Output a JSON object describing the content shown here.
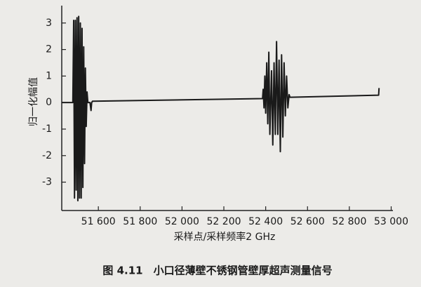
{
  "chart_data": {
    "type": "line",
    "caption": "图 4.11　小口径薄壁不锈钢管壁厚超声测量信号",
    "x_label": "采样点/采样频率2 GHz",
    "y_label": "归一化幅值",
    "color": "#1a1a1a",
    "x": [
      51425,
      51478,
      51482,
      51486,
      51490,
      51494,
      51498,
      51502,
      51506,
      51510,
      51514,
      51518,
      51522,
      51526,
      51530,
      51534,
      51538,
      51542,
      51546,
      51550,
      51560,
      51565,
      51568,
      51572,
      52385,
      52388,
      52392,
      52396,
      52400,
      52405,
      52410,
      52415,
      52420,
      52428,
      52434,
      52440,
      52446,
      52452,
      52458,
      52464,
      52470,
      52476,
      52482,
      52488,
      52494,
      52500,
      52506,
      52512,
      52516,
      52940,
      52942
    ],
    "values": [
      0,
      0,
      3.1,
      -3.6,
      3.1,
      -3.3,
      3.2,
      -3.7,
      3.25,
      -3.6,
      3.0,
      -3.6,
      2.8,
      -3.2,
      2.1,
      -2.3,
      1.3,
      -0.9,
      0.4,
      0,
      0,
      -0.3,
      0,
      0.05,
      0.15,
      0.5,
      -0.2,
      1.0,
      -0.4,
      1.5,
      -0.8,
      1.9,
      -1.2,
      1.2,
      -1.6,
      1.5,
      -1.2,
      2.3,
      -1.2,
      1.6,
      -1.85,
      1.8,
      -1.3,
      1.5,
      -0.5,
      1.0,
      -0.2,
      0.3,
      0.2,
      0.28,
      0.55
    ],
    "xlim": [
      51425,
      53000
    ],
    "ylim": [
      -4.07,
      3.55
    ],
    "xticks": [
      {
        "value": 51600,
        "label": "51 600"
      },
      {
        "value": 51800,
        "label": "51 800"
      },
      {
        "value": 52000,
        "label": "52 000"
      },
      {
        "value": 52200,
        "label": "52 200"
      },
      {
        "value": 52400,
        "label": "52 400"
      },
      {
        "value": 52600,
        "label": "52 600"
      },
      {
        "value": 52800,
        "label": "52 800"
      },
      {
        "value": 53000,
        "label": "53 000"
      }
    ],
    "yticks": [
      -3,
      -2,
      -1,
      0,
      1,
      2,
      3
    ]
  }
}
